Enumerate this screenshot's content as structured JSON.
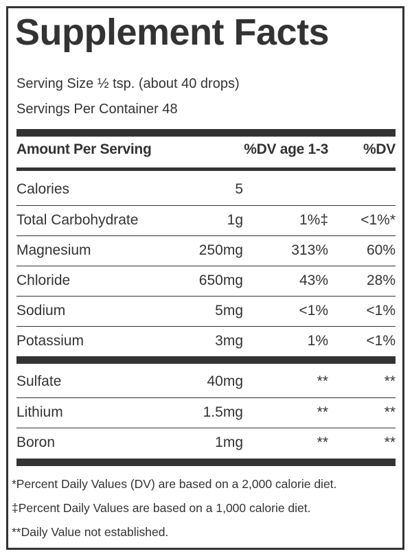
{
  "title": "Supplement Facts",
  "serving_size": "Serving Size ½ tsp. (about 40 drops)",
  "servings_per_container": "Servings Per Container 48",
  "header": {
    "amount_per_serving": "Amount Per Serving",
    "dv_age": "%DV age 1-3",
    "dv": "%DV"
  },
  "group1": [
    {
      "name": "Calories",
      "amount": "5",
      "dv_age": "",
      "dv": ""
    },
    {
      "name": "Total Carbohydrate",
      "amount": "1g",
      "dv_age": "1%‡",
      "dv": "<1%*"
    },
    {
      "name": "Magnesium",
      "amount": "250mg",
      "dv_age": "313%",
      "dv": "60%"
    },
    {
      "name": "Chloride",
      "amount": "650mg",
      "dv_age": "43%",
      "dv": "28%"
    },
    {
      "name": "Sodium",
      "amount": "5mg",
      "dv_age": "<1%",
      "dv": "<1%"
    },
    {
      "name": "Potassium",
      "amount": "3mg",
      "dv_age": "1%",
      "dv": "<1%"
    }
  ],
  "group2": [
    {
      "name": "Sulfate",
      "amount": "40mg",
      "dv_age": "**",
      "dv": "**"
    },
    {
      "name": "Lithium",
      "amount": "1.5mg",
      "dv_age": "**",
      "dv": "**"
    },
    {
      "name": "Boron",
      "amount": "1mg",
      "dv_age": "**",
      "dv": "**"
    }
  ],
  "footnotes": [
    "*Percent Daily Values (DV) are based on a 2,000 calorie diet.",
    "‡Percent Daily Values are based on a 1,000 calorie diet.",
    "**Daily Value not established."
  ]
}
